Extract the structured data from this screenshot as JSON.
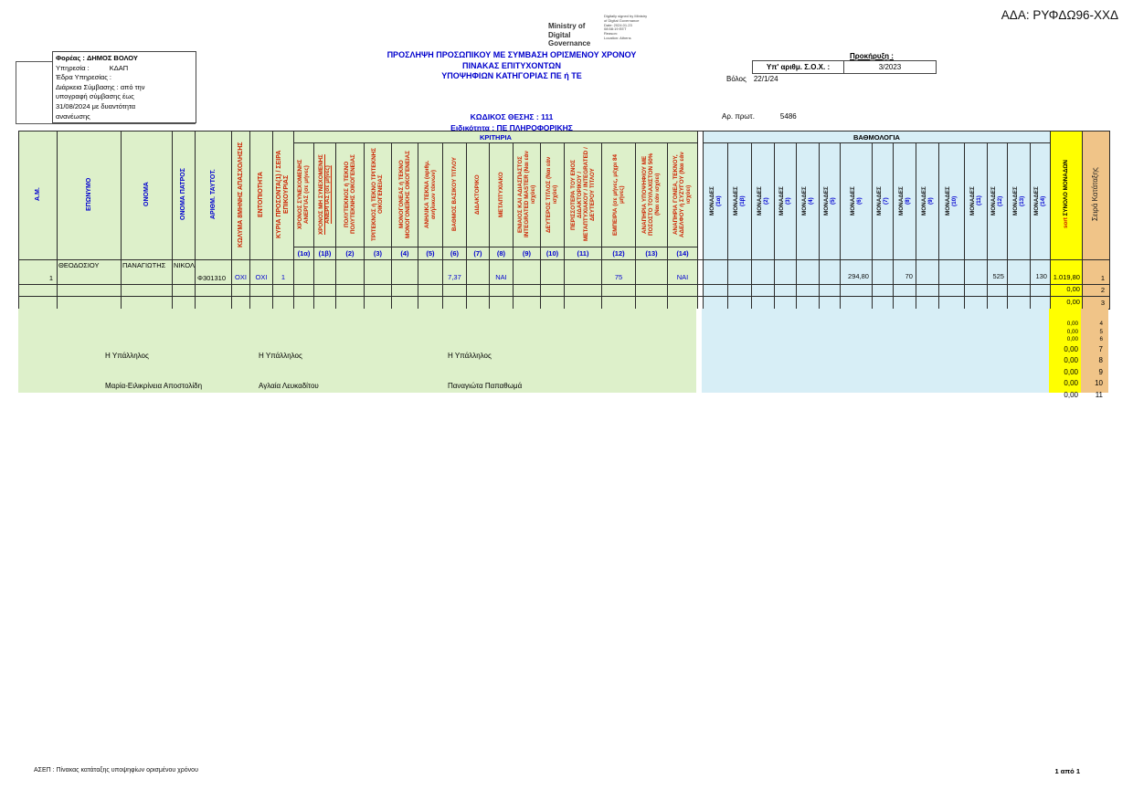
{
  "page": {
    "ada": "ΑΔΑ: ΡΥΦΔΩ96-ΧΧΔ",
    "ministry_lines": [
      "Ministry of",
      "Digital",
      "Governance"
    ],
    "signature_lines": [
      "Digitally signed by Ministry",
      "of Digital Governance",
      "Date: 2024.01.23",
      "08:58:19 EET",
      "Reason:",
      "Location: Athens"
    ],
    "footer_left": "ΑΣΕΠ : Πίνακας κατάταξης  υποψηφίων ορισμένου χρόνου",
    "footer_right": "1 από 1"
  },
  "org_box": {
    "line1_label": "Φορέας :",
    "line1_value": "ΔΗΜΟΣ ΒΟΛΟΥ",
    "line2_label": "Υπηρεσία :",
    "line2_value": "ΚΔΑΠ",
    "line3": "Έδρα Υπηρεσίας :",
    "line4": "Διάρκεια Σύμβασης :  από την",
    "line5": "υπογραφή σύμβασης έως",
    "line6": "31/08/2024 με δυαντότητα",
    "line7": "ανανέωσης"
  },
  "titles": {
    "line1": "ΠΡΟΣΛΗΨΗ ΠΡΟΣΩΠΙΚΟΥ ΜΕ ΣΥΜΒΑΣΗ ΟΡΙΣΜΕΝΟΥ ΧΡΟΝΟΥ",
    "line2": "ΠΙΝΑΚΑΣ ΕΠΙΤΥΧΟΝΤΩΝ",
    "line3": "ΥΠΟΨΗΦΙΩΝ ΚΑΤΗΓΟΡΙΑΣ ΠΕ ή ΤΕ",
    "position_code": "ΚΩΔΙΚΟΣ ΘΕΣΗΣ : 111",
    "specialty": "Ειδικότητα :  ΠΕ ΠΛΗΡΟΦΟΡΙΚΗΣ"
  },
  "right_meta": {
    "prokiryxi_label": "Προκήρυξη :",
    "soh_label": "Υπ' αριθμ. Σ.Ο.Χ. :",
    "soh_value": "3/2023",
    "place": "Βόλος",
    "date": "22/1/24",
    "protocol_label": "Αρ. πρωτ.",
    "protocol_value": "5486"
  },
  "table": {
    "kritiria_label": "ΚΡΙΤΗΡΙΑ",
    "vathmologia_label": "ΒΑΘΜΟΛΟΓΙΑ",
    "left_headers": [
      {
        "label": "Α.Μ.",
        "color": "blue"
      },
      {
        "label": "ΕΠΩΝΥΜΟ",
        "color": "blue"
      },
      {
        "label": "ΟΝΟΜΑ",
        "color": "blue"
      },
      {
        "label": "ΟΝΟΜΑ ΠΑΤΡΟΣ",
        "color": "blue"
      },
      {
        "label": "ΑΡΙΘΜ. ΤΑΥΤΟΤ.",
        "color": "blue"
      },
      {
        "label": "ΚΩΛΥΜΑ 8ΜΗΝΗΣ ΑΠΑΣΧΟΛΗΣΗΣ",
        "color": "red"
      },
      {
        "label": "ΕΝΤΟΠΙΟΤΗΤΑ",
        "color": "red"
      },
      {
        "label": "ΚΥΡΙΑ ΠΡΟΣΟΝΤΑ(1) / ΣΕΙΡΑ ΕΠΙΚΟΥΡΙΑΣ",
        "color": "red"
      }
    ],
    "criteria_headers": [
      {
        "num": "(1α)",
        "label": "ΧΡΟΝΟΣ ΣΥΝΕΧΟΜΕΝΗΣ ΑΝΕΡΓΙΑΣ (σε μήνες)",
        "underline": false
      },
      {
        "num": "(1β)",
        "label": "ΧΡΟΝΟΣ ΜΗ ΣΥΝΕΧΟΜΕΝΗΣ ΑΝΕΡΓΙΑΣ (σε μήνες)",
        "underline": true
      },
      {
        "num": "(2)",
        "label": "ΠΟΛΥΤΕΚΝΟΣ ή ΤΕΚΝΟ ΠΟΛΥΤΕΚΝΗΣ ΟΙΚΟΓΕΝΕΙΑΣ",
        "underline": false
      },
      {
        "num": "(3)",
        "label": "ΤΡΙΤΕΚΝΟΣ ή ΤΕΚΝΟ ΤΡΙΤΕΚΝΗΣ ΟΙΚΟΓΕΝΕΙΑΣ",
        "underline": false
      },
      {
        "num": "(4)",
        "label": "ΜΟΝΟΓΟΝΕΑΣ ή ΤΕΚΝΟ ΜΟΝΟΓΟΝΕΪΚΗΣ ΟΙΚΟΓΕΝΕΙΑΣ",
        "underline": false
      },
      {
        "num": "(5)",
        "label": "ΑΝΗΛΙΚΑ ΤΕΚΝΑ (αριθμ. ανήλικων τέκνων)",
        "underline": false
      },
      {
        "num": "(6)",
        "label": "ΒΑΘΜΟΣ ΒΑΣΙΚΟΥ ΤΙΤΛΟΥ",
        "underline": false
      },
      {
        "num": "(7)",
        "label": "ΔΙΔΑΚΤΟΡΙΚΟ",
        "underline": false
      },
      {
        "num": "(8)",
        "label": "ΜΕΤΑΠΤΥΧΙΑΚΟ",
        "underline": false
      },
      {
        "num": "(9)",
        "label": "ΕΝΙΑΙΟΣ ΚΑΙ ΑΔΙΑΣΠΑΣΤΟΣ INTEGRATED MASTER (Ναι εάν ισχύει)",
        "underline": false
      },
      {
        "num": "(10)",
        "label": "ΔΕΥΤΕΡΟΣ ΤΙΤΛΟΣ (Ναι εάν ισχύει)",
        "underline": false
      },
      {
        "num": "(11)",
        "label": "ΠΕΡΙΣΣΟΤΕΡΑ ΤΟΥ ΕΝΟΣ ΔΙΔΑΚΤΟΡΙΚΟΥ / ΜΕΤΑΠΤΥΧΙΑΚΟΥ / INTEGRATED / ΔΕΥΤΕΡΟΥ ΤΙΤΛΟΥ",
        "underline": false
      },
      {
        "num": "(12)",
        "label": "ΕΜΠΕΙΡΙΑ (σε μήνες, μέχρι 84 μήνες)",
        "underline": false
      },
      {
        "num": "(13)",
        "label": "ΑΝΑΠΗΡΙΑ ΥΠΟΨΗΦΙΟΥ ΜΕ ΠΟΣΟΣΤΟ ΤΟΥΛΑΧΙΣΤΟΝ 50% (Ναι εάν ισχύει)",
        "underline": false
      },
      {
        "num": "(14)",
        "label": "ΑΝΑΠΗΡΙΑ ΓΟΝΕΑ, ΤΕΚΝΟΥ, ΑΔΕΛΦΟΥ ή ΣΥΖΥΓΟΥ (Ναι εάν ισχύει)",
        "underline": false
      }
    ],
    "monades_label": "ΜΟΝΑΔΕΣ",
    "monades_nums": [
      "(1α)",
      "(1β)",
      "(2)",
      "(3)",
      "(4)",
      "(5)",
      "(6)",
      "(7)",
      "(8)",
      "(9)",
      "(10)",
      "(11)",
      "(12)",
      "(13)",
      "(14)"
    ],
    "total_header_sort": "sort",
    "total_header_label": " ΣΥΝΟΛΟ ΜΟΝΑΔΩΝ",
    "rank_header": "Σειρά Κατάταξης",
    "rows": [
      {
        "am": "1",
        "surname": "ΘΕΟΔΟΣΙΟΥ",
        "name": "ΠΑΝΑΓΙΩΤΗΣ",
        "father": "ΝΙΚΟΛ",
        "id": "Φ301310",
        "kolyma": "ΟΧΙ",
        "entopiotita": "ΟΧΙ",
        "kyria": "1",
        "criteria": [
          "",
          "",
          "",
          "",
          "",
          "",
          "7,37",
          "",
          "ΝΑΙ",
          "",
          "",
          "",
          "75",
          "",
          "ΝΑΙ"
        ],
        "monades": [
          "",
          "",
          "",
          "",
          "",
          "",
          "294,80",
          "",
          "70",
          "",
          "",
          "",
          "525",
          "",
          "130"
        ],
        "total": "1.019,80",
        "rank": "1"
      },
      {
        "am": "",
        "surname": "",
        "name": "",
        "father": "",
        "id": "",
        "kolyma": "",
        "entopiotita": "",
        "kyria": "",
        "criteria": [
          "",
          "",
          "",
          "",
          "",
          "",
          "",
          "",
          "",
          "",
          "",
          "",
          "",
          "",
          ""
        ],
        "monades": [
          "",
          "",
          "",
          "",
          "",
          "",
          "",
          "",
          "",
          "",
          "",
          "",
          "",
          "",
          ""
        ],
        "total": "0,00",
        "rank": "2"
      },
      {
        "am": "",
        "surname": "",
        "name": "",
        "father": "",
        "id": "",
        "kolyma": "",
        "entopiotita": "",
        "kyria": "",
        "criteria": [
          "",
          "",
          "",
          "",
          "",
          "",
          "",
          "",
          "",
          "",
          "",
          "",
          "",
          "",
          ""
        ],
        "monades": [
          "",
          "",
          "",
          "",
          "",
          "",
          "",
          "",
          "",
          "",
          "",
          "",
          "",
          "",
          ""
        ],
        "total": "0,00",
        "rank": "3"
      }
    ],
    "overflow_rows": [
      {
        "total": "0,00",
        "rank": "4",
        "size": "small"
      },
      {
        "total": "0,00",
        "rank": "5",
        "size": "small"
      },
      {
        "total": "0,00",
        "rank": "6",
        "size": "small"
      },
      {
        "total": "0,00",
        "rank": "7",
        "size": "large"
      },
      {
        "total": "0,00",
        "rank": "8",
        "size": "large"
      },
      {
        "total": "0,00",
        "rank": "9",
        "size": "large"
      },
      {
        "total": "0,00",
        "rank": "10",
        "size": "large"
      },
      {
        "total": "0,00",
        "rank": "11",
        "size": "large"
      }
    ]
  },
  "signatures": [
    {
      "role": "Η  Υπάλληλος",
      "name": "Μαρία-Ειλικρίνεια Αποστολίδη"
    },
    {
      "role": "Η  Υπάλληλος",
      "name": "Αγλαία Λευκαδίτου"
    },
    {
      "role": "Η Υπάλληλος",
      "name": "Παναγιώτα Παπαθωμά"
    }
  ],
  "colors": {
    "criteria_bg": "#ddf0ca",
    "score_bg": "#d7eef6",
    "total_bg": "#ffff00",
    "rank_bg": "#f0c488",
    "header_blue": "#0000d0",
    "header_red": "#cc2200",
    "title_blue": "#0000cc"
  }
}
